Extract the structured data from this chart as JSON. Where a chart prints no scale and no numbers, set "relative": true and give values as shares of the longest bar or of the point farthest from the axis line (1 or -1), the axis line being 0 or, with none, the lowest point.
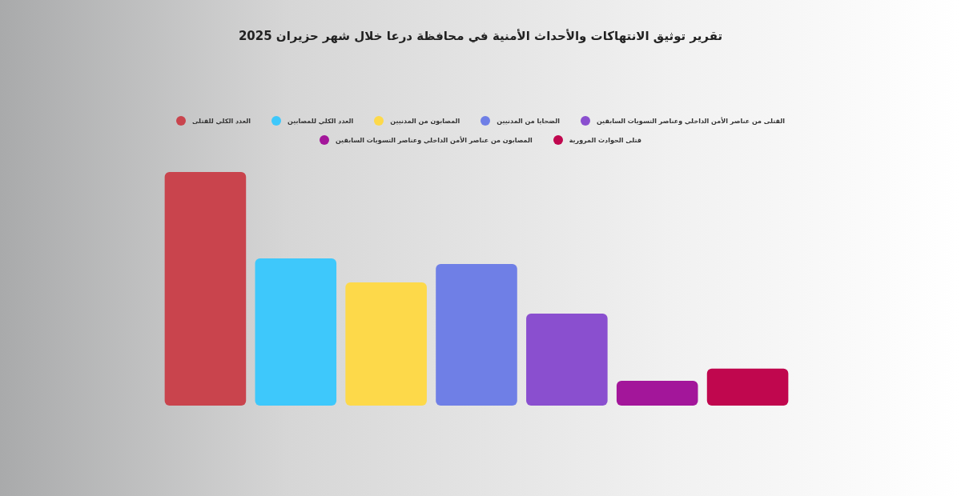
{
  "chart_data": {
    "type": "bar",
    "title": "تقرير توثيق الانتهاكات والأحداث الأمنية في محافظة درعا خلال شهر حزيران 2025",
    "categories": [
      null,
      null,
      null,
      null,
      null,
      null,
      null
    ],
    "relative": true,
    "stacked": true,
    "legend": "top",
    "grid": false,
    "series": [
      {
        "name": "العدد الكلي للقتلى",
        "color": "#c9444d",
        "values": [
          1,
          null,
          null,
          null,
          null,
          null,
          null
        ]
      },
      {
        "name": "العدد الكلي للمصابين",
        "color": "#3ec8fb",
        "values": [
          null,
          0.63,
          null,
          null,
          null,
          null,
          null
        ]
      },
      {
        "name": "المصابون من المدنيين",
        "color": "#fdd94a",
        "values": [
          null,
          null,
          0.527,
          null,
          null,
          null,
          null
        ]
      },
      {
        "name": "الضحايا من المدنيين",
        "color": "#6f7fe6",
        "values": [
          null,
          null,
          null,
          0.606,
          null,
          null,
          null
        ]
      },
      {
        "name": "القتلى من عناصر الأمن الداخلي وعناصر التسويات السابقين",
        "color": "#8a4fcf",
        "values": [
          null,
          null,
          null,
          null,
          0.394,
          null,
          null
        ]
      },
      {
        "name": "المصابون من عناصر الأمن الداخلي وعناصر التسويات السابقين",
        "color": "#a3169a",
        "values": [
          null,
          null,
          null,
          null,
          null,
          0.106,
          null
        ]
      },
      {
        "name": "قتلى الحوادث المرورية",
        "color": "#c0074e",
        "values": [
          null,
          null,
          null,
          null,
          null,
          null,
          0.158
        ]
      }
    ]
  }
}
